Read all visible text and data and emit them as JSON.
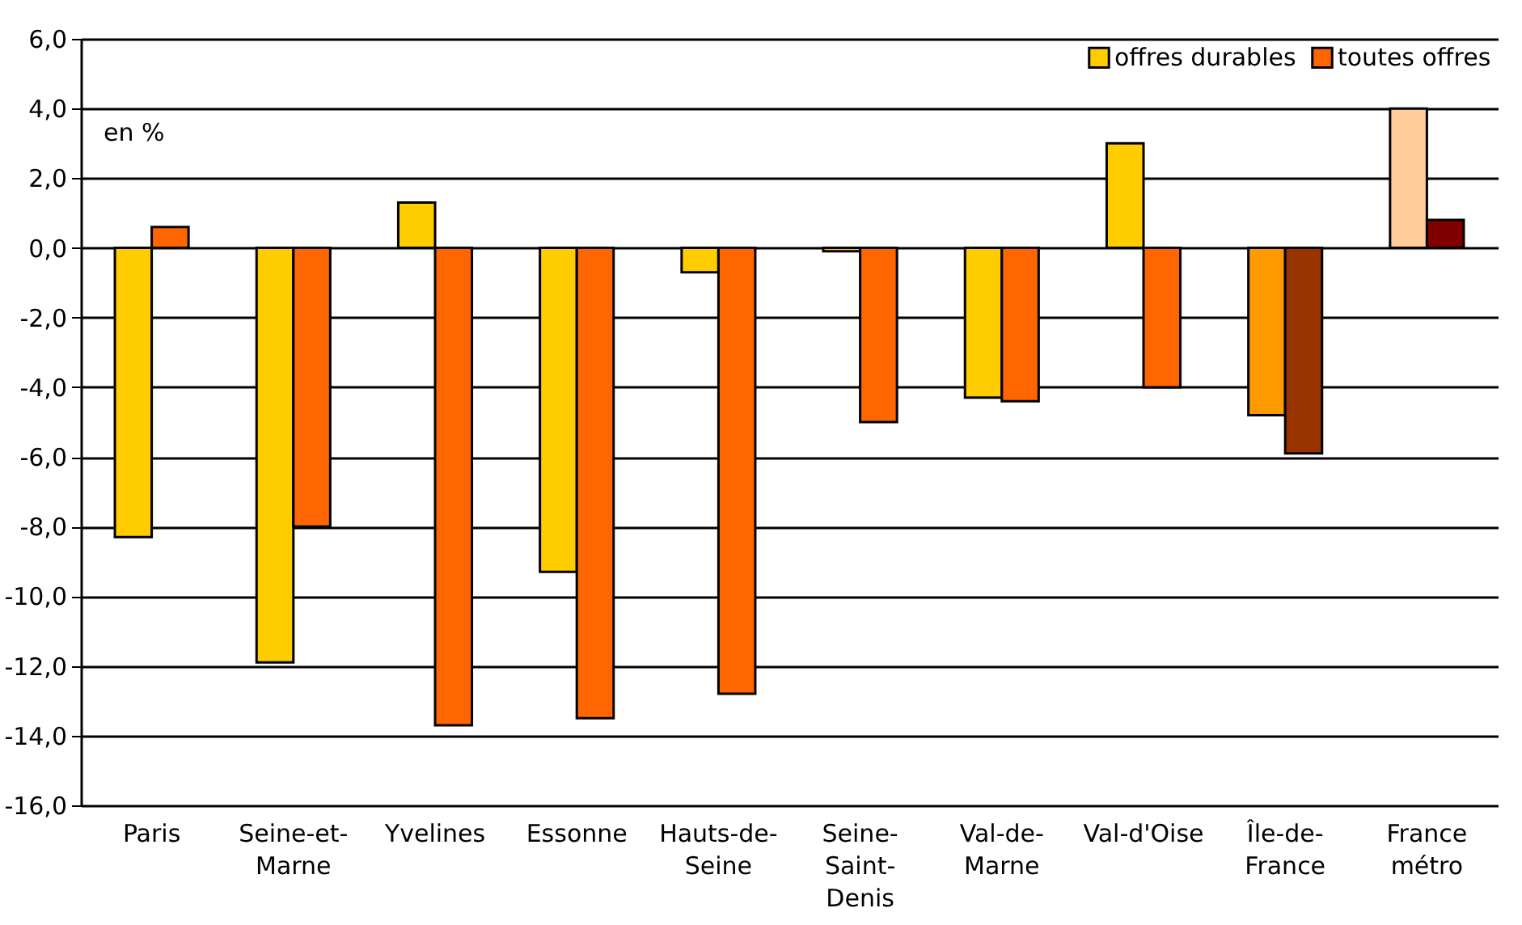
{
  "chart_data": {
    "type": "bar",
    "categories": [
      "Paris",
      "Seine-et-Marne",
      "Yvelines",
      "Essonne",
      "Hauts-de-Seine",
      "Seine-Saint-Denis",
      "Val-de-Marne",
      "Val-d'Oise",
      "Île-de-France",
      "France métro"
    ],
    "series": [
      {
        "name": "offres durables",
        "color": "#ffcc00",
        "colors": [
          "#ffcc00",
          "#ffcc00",
          "#ffcc00",
          "#ffcc00",
          "#ffcc00",
          "#ffcc00",
          "#ffcc00",
          "#ffcc00",
          "#ff9900",
          "#ffcc99"
        ],
        "values": [
          -8.3,
          -11.9,
          1.3,
          -9.3,
          -0.7,
          -0.1,
          -4.3,
          3.0,
          -4.8,
          4.0
        ]
      },
      {
        "name": "toutes offres",
        "color": "#ff6600",
        "colors": [
          "#ff6600",
          "#ff6600",
          "#ff6600",
          "#ff6600",
          "#ff6600",
          "#ff6600",
          "#ff6600",
          "#ff6600",
          "#993300",
          "#800000"
        ],
        "values": [
          0.6,
          -8.0,
          -13.7,
          -13.5,
          -12.8,
          -5.0,
          -4.4,
          -4.0,
          -5.9,
          0.8
        ]
      }
    ],
    "ylim": [
      -16,
      6
    ],
    "yticks": [
      {
        "value": -16,
        "label": "-16,0"
      },
      {
        "value": -14,
        "label": "-14,0"
      },
      {
        "value": -12,
        "label": "-12,0"
      },
      {
        "value": -10,
        "label": "-10,0"
      },
      {
        "value": -8,
        "label": "-8,0"
      },
      {
        "value": -6,
        "label": "-6,0"
      },
      {
        "value": -4,
        "label": "-4,0"
      },
      {
        "value": -2,
        "label": "-2,0"
      },
      {
        "value": 0,
        "label": "0,0"
      },
      {
        "value": 2,
        "label": "2,0"
      },
      {
        "value": 4,
        "label": "4,0"
      },
      {
        "value": 6,
        "label": "6,0"
      }
    ],
    "grid": "y",
    "legend": "top right",
    "annotations": [
      "en %"
    ]
  }
}
